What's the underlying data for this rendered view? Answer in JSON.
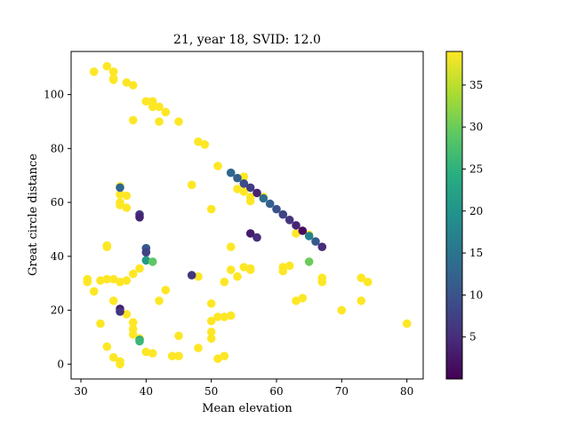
{
  "chart_data": {
    "type": "scatter",
    "title": "21, year 18, SVID: 12.0",
    "xlabel": "Mean elevation",
    "ylabel": "Great circle distance",
    "xlim": [
      28.5,
      82.5
    ],
    "ylim": [
      -5.5,
      116
    ],
    "x_ticks": [
      30,
      40,
      50,
      60,
      70,
      80
    ],
    "y_ticks": [
      0,
      20,
      40,
      60,
      80,
      100
    ],
    "grid": false,
    "legend": "none",
    "colorbar": {
      "colormap": "viridis",
      "range": [
        0,
        39
      ],
      "ticks": [
        5,
        10,
        15,
        20,
        25,
        30,
        35
      ]
    },
    "points": [
      {
        "x": 32,
        "y": 108.5,
        "c": 39
      },
      {
        "x": 34,
        "y": 110.5,
        "c": 39
      },
      {
        "x": 35,
        "y": 108.5,
        "c": 39
      },
      {
        "x": 35,
        "y": 106,
        "c": 39
      },
      {
        "x": 35,
        "y": 105.5,
        "c": 39
      },
      {
        "x": 37,
        "y": 104.5,
        "c": 39
      },
      {
        "x": 38,
        "y": 103.5,
        "c": 39
      },
      {
        "x": 40,
        "y": 97.5,
        "c": 39
      },
      {
        "x": 41,
        "y": 97.5,
        "c": 39
      },
      {
        "x": 41,
        "y": 95.5,
        "c": 39
      },
      {
        "x": 42,
        "y": 95.5,
        "c": 39
      },
      {
        "x": 43,
        "y": 93.5,
        "c": 39
      },
      {
        "x": 38,
        "y": 90.5,
        "c": 39
      },
      {
        "x": 42,
        "y": 90,
        "c": 39
      },
      {
        "x": 45,
        "y": 90,
        "c": 39
      },
      {
        "x": 48,
        "y": 82.5,
        "c": 39
      },
      {
        "x": 49,
        "y": 81.5,
        "c": 39
      },
      {
        "x": 51,
        "y": 73.5,
        "c": 39
      },
      {
        "x": 47,
        "y": 66.5,
        "c": 39
      },
      {
        "x": 55,
        "y": 69.5,
        "c": 39
      },
      {
        "x": 54,
        "y": 65,
        "c": 39
      },
      {
        "x": 55,
        "y": 64,
        "c": 39
      },
      {
        "x": 56,
        "y": 62,
        "c": 39
      },
      {
        "x": 56,
        "y": 60.5,
        "c": 39
      },
      {
        "x": 58,
        "y": 62,
        "c": 39
      },
      {
        "x": 36,
        "y": 66,
        "c": 39
      },
      {
        "x": 36,
        "y": 63,
        "c": 39
      },
      {
        "x": 37,
        "y": 62.5,
        "c": 39
      },
      {
        "x": 36,
        "y": 60,
        "c": 39
      },
      {
        "x": 36,
        "y": 59,
        "c": 39
      },
      {
        "x": 37,
        "y": 58,
        "c": 39
      },
      {
        "x": 50,
        "y": 57.5,
        "c": 39
      },
      {
        "x": 63,
        "y": 48.5,
        "c": 39
      },
      {
        "x": 65,
        "y": 48,
        "c": 39
      },
      {
        "x": 34,
        "y": 44,
        "c": 39
      },
      {
        "x": 34,
        "y": 43.5,
        "c": 39
      },
      {
        "x": 53,
        "y": 43.5,
        "c": 39
      },
      {
        "x": 53,
        "y": 35,
        "c": 39
      },
      {
        "x": 55,
        "y": 36,
        "c": 39
      },
      {
        "x": 56,
        "y": 35.5,
        "c": 39
      },
      {
        "x": 56,
        "y": 35,
        "c": 39
      },
      {
        "x": 54,
        "y": 32.5,
        "c": 39
      },
      {
        "x": 52,
        "y": 30.5,
        "c": 39
      },
      {
        "x": 61,
        "y": 36,
        "c": 39
      },
      {
        "x": 61,
        "y": 34.5,
        "c": 39
      },
      {
        "x": 62,
        "y": 36.5,
        "c": 39
      },
      {
        "x": 67,
        "y": 32,
        "c": 39
      },
      {
        "x": 67,
        "y": 30.5,
        "c": 39
      },
      {
        "x": 73,
        "y": 32,
        "c": 39
      },
      {
        "x": 74,
        "y": 30.5,
        "c": 39
      },
      {
        "x": 73,
        "y": 23.5,
        "c": 39
      },
      {
        "x": 63,
        "y": 23.5,
        "c": 39
      },
      {
        "x": 64,
        "y": 24.5,
        "c": 39
      },
      {
        "x": 70,
        "y": 20,
        "c": 39
      },
      {
        "x": 80,
        "y": 15,
        "c": 39
      },
      {
        "x": 31,
        "y": 31.5,
        "c": 39
      },
      {
        "x": 31,
        "y": 30.5,
        "c": 39
      },
      {
        "x": 33,
        "y": 31,
        "c": 39
      },
      {
        "x": 34,
        "y": 31.5,
        "c": 39
      },
      {
        "x": 35,
        "y": 31.5,
        "c": 39
      },
      {
        "x": 36,
        "y": 30.5,
        "c": 39
      },
      {
        "x": 37,
        "y": 31,
        "c": 39
      },
      {
        "x": 38,
        "y": 33.5,
        "c": 39
      },
      {
        "x": 39,
        "y": 35.5,
        "c": 39
      },
      {
        "x": 32,
        "y": 27,
        "c": 39
      },
      {
        "x": 35,
        "y": 23.5,
        "c": 39
      },
      {
        "x": 43,
        "y": 27.5,
        "c": 39
      },
      {
        "x": 42,
        "y": 23.5,
        "c": 39
      },
      {
        "x": 48,
        "y": 32.5,
        "c": 39
      },
      {
        "x": 33,
        "y": 15,
        "c": 39
      },
      {
        "x": 37,
        "y": 18.5,
        "c": 39
      },
      {
        "x": 38,
        "y": 15.5,
        "c": 39
      },
      {
        "x": 38,
        "y": 13,
        "c": 39
      },
      {
        "x": 38,
        "y": 11,
        "c": 39
      },
      {
        "x": 39,
        "y": 9.5,
        "c": 39
      },
      {
        "x": 34,
        "y": 6.5,
        "c": 39
      },
      {
        "x": 35,
        "y": 2.5,
        "c": 39
      },
      {
        "x": 36,
        "y": 1,
        "c": 39
      },
      {
        "x": 36,
        "y": 0,
        "c": 39
      },
      {
        "x": 40,
        "y": 4.5,
        "c": 39
      },
      {
        "x": 41,
        "y": 4,
        "c": 39
      },
      {
        "x": 44,
        "y": 3,
        "c": 39
      },
      {
        "x": 45,
        "y": 3,
        "c": 39
      },
      {
        "x": 45,
        "y": 10.5,
        "c": 39
      },
      {
        "x": 48,
        "y": 6,
        "c": 39
      },
      {
        "x": 50,
        "y": 22.5,
        "c": 39
      },
      {
        "x": 50,
        "y": 16,
        "c": 39
      },
      {
        "x": 51,
        "y": 17.5,
        "c": 39
      },
      {
        "x": 52,
        "y": 17.5,
        "c": 39
      },
      {
        "x": 53,
        "y": 18,
        "c": 39
      },
      {
        "x": 50,
        "y": 12,
        "c": 39
      },
      {
        "x": 50,
        "y": 9.5,
        "c": 39
      },
      {
        "x": 51,
        "y": 2,
        "c": 39
      },
      {
        "x": 52,
        "y": 3,
        "c": 39
      },
      {
        "x": 53,
        "y": 71,
        "c": 13
      },
      {
        "x": 54,
        "y": 69,
        "c": 12
      },
      {
        "x": 55,
        "y": 67,
        "c": 9
      },
      {
        "x": 56,
        "y": 65.5,
        "c": 7
      },
      {
        "x": 57,
        "y": 63.5,
        "c": 4
      },
      {
        "x": 58,
        "y": 61.5,
        "c": 14
      },
      {
        "x": 59,
        "y": 59.5,
        "c": 12
      },
      {
        "x": 60,
        "y": 57.5,
        "c": 10
      },
      {
        "x": 61,
        "y": 55.5,
        "c": 8
      },
      {
        "x": 62,
        "y": 53.5,
        "c": 6
      },
      {
        "x": 63,
        "y": 51.5,
        "c": 4
      },
      {
        "x": 64,
        "y": 49.5,
        "c": 1
      },
      {
        "x": 65,
        "y": 47.5,
        "c": 17
      },
      {
        "x": 66,
        "y": 45.5,
        "c": 11
      },
      {
        "x": 67,
        "y": 43.5,
        "c": 5
      },
      {
        "x": 56,
        "y": 48.5,
        "c": 3
      },
      {
        "x": 57,
        "y": 47,
        "c": 5
      },
      {
        "x": 47,
        "y": 33,
        "c": 6
      },
      {
        "x": 36,
        "y": 65.5,
        "c": 13
      },
      {
        "x": 39,
        "y": 55.5,
        "c": 6
      },
      {
        "x": 39,
        "y": 54.5,
        "c": 4
      },
      {
        "x": 40,
        "y": 43,
        "c": 11
      },
      {
        "x": 40,
        "y": 41.5,
        "c": 8
      },
      {
        "x": 40,
        "y": 38.5,
        "c": 21
      },
      {
        "x": 41,
        "y": 38,
        "c": 29
      },
      {
        "x": 65,
        "y": 38,
        "c": 30
      },
      {
        "x": 36,
        "y": 20.5,
        "c": 3
      },
      {
        "x": 36,
        "y": 19.5,
        "c": 6
      },
      {
        "x": 39,
        "y": 9,
        "c": 22
      },
      {
        "x": 39,
        "y": 8.5,
        "c": 26
      }
    ]
  }
}
